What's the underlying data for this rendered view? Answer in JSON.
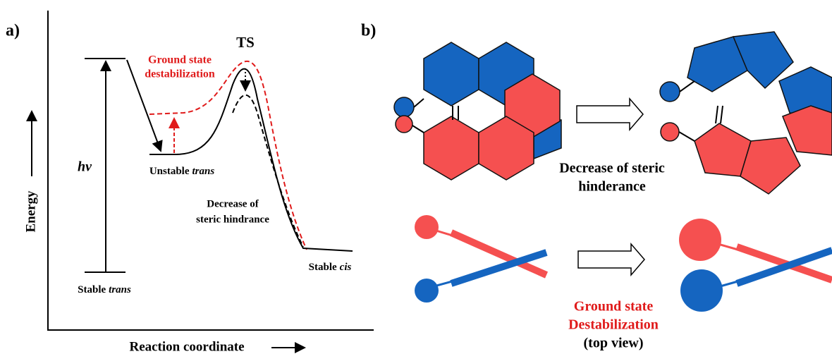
{
  "panel_a": {
    "label": "a)",
    "y_axis": "Energy",
    "x_axis": "Reaction coordinate",
    "ts": "TS",
    "gsd": [
      "Ground state",
      "destabilization"
    ],
    "hv": "hv",
    "unstable": {
      "text": "Unstable",
      "italic": "trans"
    },
    "steric": [
      "Decrease of",
      "steric hindrance"
    ],
    "stable_cis": {
      "text": "Stable",
      "italic": "cis"
    },
    "stable_trans": {
      "text": "Stable",
      "italic": "trans"
    }
  },
  "panel_b": {
    "label": "b)",
    "top_caption": [
      "Decrease of steric",
      "hinderance"
    ],
    "bottom_caption": [
      "Ground state",
      "Destabilization",
      "(top view)"
    ]
  }
}
